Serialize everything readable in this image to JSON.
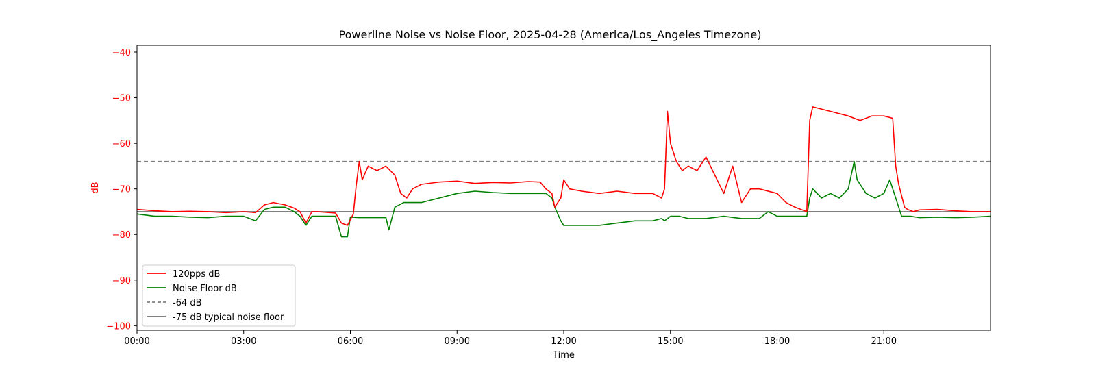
{
  "chart_data": {
    "type": "line",
    "title": "Powerline Noise vs Noise Floor, 2025-04-28 (America/Los_Angeles Timezone)",
    "xlabel": "Time",
    "ylabel": "dB",
    "ylabel_color": "#ff0000",
    "xlim": [
      "00:00",
      "24:00"
    ],
    "ylim": [
      -101,
      -38.5
    ],
    "x_ticks": [
      "00:00",
      "03:00",
      "06:00",
      "09:00",
      "12:00",
      "15:00",
      "18:00",
      "21:00"
    ],
    "y_ticks": [
      -100,
      -90,
      -80,
      -70,
      -60,
      -50,
      -40
    ],
    "y_tick_color": "#ff0000",
    "grid": false,
    "legend_placement": "lower-left",
    "series": [
      {
        "name": "120pps dB",
        "color": "#ff0000",
        "style": "solid",
        "x": [
          "00:00",
          "00:30",
          "01:00",
          "01:30",
          "02:00",
          "02:30",
          "03:00",
          "03:20",
          "03:35",
          "03:50",
          "04:10",
          "04:25",
          "04:35",
          "04:45",
          "04:55",
          "05:05",
          "05:35",
          "05:45",
          "05:55",
          "06:05",
          "06:10",
          "06:15",
          "06:20",
          "06:30",
          "06:45",
          "07:00",
          "07:15",
          "07:25",
          "07:35",
          "07:45",
          "08:00",
          "08:30",
          "09:00",
          "09:30",
          "10:00",
          "10:30",
          "11:00",
          "11:20",
          "11:30",
          "11:40",
          "11:45",
          "11:50",
          "11:55",
          "12:00",
          "12:10",
          "12:30",
          "13:00",
          "13:30",
          "14:00",
          "14:30",
          "14:45",
          "14:50",
          "14:55",
          "15:00",
          "15:10",
          "15:20",
          "15:30",
          "15:45",
          "16:00",
          "16:15",
          "16:30",
          "16:45",
          "17:00",
          "17:15",
          "17:30",
          "18:00",
          "18:15",
          "18:30",
          "18:50",
          "18:55",
          "19:00",
          "19:30",
          "20:00",
          "20:20",
          "20:40",
          "21:00",
          "21:15",
          "21:20",
          "21:25",
          "21:35",
          "21:40",
          "21:50",
          "22:00",
          "22:30",
          "23:00",
          "23:30",
          "24:00"
        ],
        "y": [
          -74.5,
          -74.8,
          -75,
          -74.9,
          -75,
          -75.2,
          -75,
          -75.2,
          -73.5,
          -73,
          -73.5,
          -74.2,
          -75,
          -77.5,
          -75,
          -75,
          -75.3,
          -77.5,
          -78,
          -75.5,
          -69,
          -64,
          -68,
          -65,
          -66,
          -65,
          -67,
          -71,
          -72,
          -70,
          -69,
          -68.5,
          -68.3,
          -68.8,
          -68.6,
          -68.7,
          -68.4,
          -68.5,
          -70,
          -71,
          -74,
          -73,
          -72,
          -68,
          -70,
          -70.5,
          -71,
          -70.5,
          -71,
          -71,
          -72,
          -70,
          -53,
          -60,
          -64,
          -66,
          -65,
          -66,
          -63,
          -67,
          -71,
          -65,
          -73,
          -70,
          -70,
          -71,
          -73,
          -74,
          -75,
          -55,
          -52,
          -53,
          -54,
          -55,
          -54,
          -54,
          -54.5,
          -65,
          -69,
          -74,
          -74.5,
          -75,
          -74.6,
          -74.5,
          -74.8,
          -75,
          -75
        ]
      },
      {
        "name": "Noise Floor dB",
        "color": "#008000",
        "style": "solid",
        "x": [
          "00:00",
          "00:30",
          "01:00",
          "01:30",
          "02:00",
          "02:30",
          "03:00",
          "03:20",
          "03:35",
          "03:50",
          "04:10",
          "04:25",
          "04:35",
          "04:45",
          "04:55",
          "05:05",
          "05:35",
          "05:45",
          "05:55",
          "06:00",
          "06:15",
          "06:30",
          "07:00",
          "07:05",
          "07:15",
          "07:30",
          "08:00",
          "08:30",
          "09:00",
          "09:30",
          "10:00",
          "10:30",
          "11:00",
          "11:30",
          "11:40",
          "11:45",
          "11:55",
          "12:00",
          "12:15",
          "12:30",
          "13:00",
          "13:30",
          "14:00",
          "14:30",
          "14:45",
          "14:50",
          "15:00",
          "15:15",
          "15:30",
          "16:00",
          "16:30",
          "17:00",
          "17:30",
          "17:45",
          "18:00",
          "18:15",
          "18:30",
          "18:50",
          "18:55",
          "19:00",
          "19:15",
          "19:30",
          "19:45",
          "20:00",
          "20:10",
          "20:15",
          "20:30",
          "20:45",
          "21:00",
          "21:10",
          "21:20",
          "21:30",
          "21:45",
          "22:00",
          "22:30",
          "23:00",
          "23:30",
          "24:00"
        ],
        "y": [
          -75.5,
          -76,
          -76,
          -76.2,
          -76.3,
          -76,
          -76,
          -77,
          -74.5,
          -74,
          -74,
          -75,
          -76,
          -78,
          -76,
          -76,
          -76,
          -80.5,
          -80.5,
          -76.2,
          -76.3,
          -76.3,
          -76.3,
          -79,
          -74,
          -73,
          -73,
          -72,
          -71,
          -70.5,
          -70.8,
          -71,
          -71,
          -71,
          -72,
          -74,
          -77,
          -78,
          -78,
          -78,
          -78,
          -77.5,
          -77,
          -77,
          -76.5,
          -77,
          -76,
          -76,
          -76.5,
          -76.5,
          -76,
          -76.5,
          -76.5,
          -75,
          -76,
          -76,
          -76,
          -76,
          -72,
          -70,
          -72,
          -71,
          -72,
          -70,
          -64,
          -68,
          -71,
          -72,
          -71,
          -68,
          -72,
          -76,
          -76,
          -76.3,
          -76.2,
          -76.3,
          -76.2,
          -76
        ]
      },
      {
        "name": "-64 dB",
        "color": "#808080",
        "style": "dashed",
        "x": [
          "00:00",
          "24:00"
        ],
        "y": [
          -64,
          -64
        ]
      },
      {
        "name": "-75 dB typical noise floor",
        "color": "#707070",
        "style": "solid",
        "x": [
          "00:00",
          "24:00"
        ],
        "y": [
          -75,
          -75
        ]
      }
    ]
  }
}
